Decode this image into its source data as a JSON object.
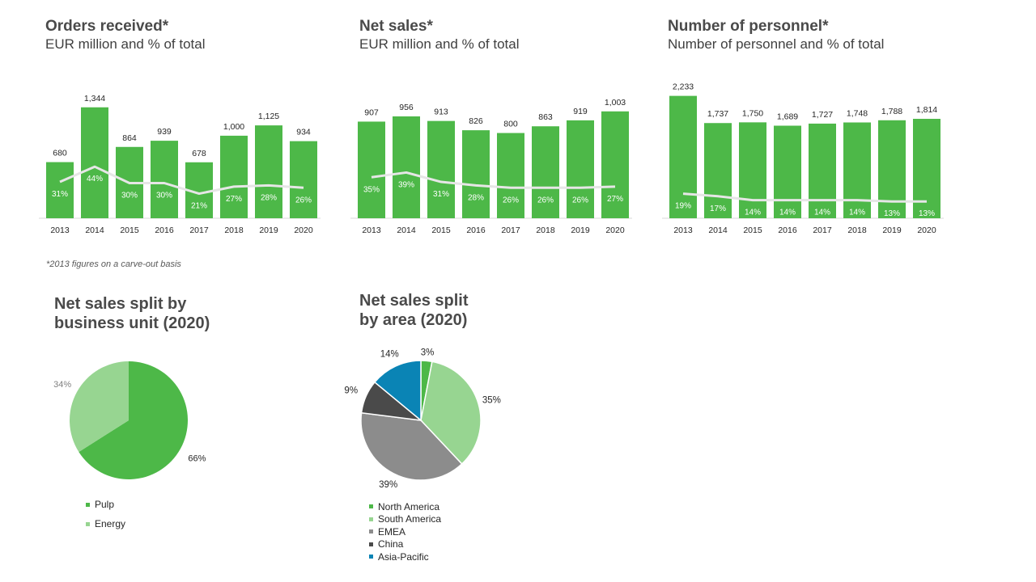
{
  "footnote": "*2013 figures on a carve-out basis",
  "chart_data": [
    {
      "type": "bar",
      "title": "Orders received*",
      "subtitle": "EUR million and % of total",
      "categories": [
        "2013",
        "2014",
        "2015",
        "2016",
        "2017",
        "2018",
        "2019",
        "2020"
      ],
      "series": [
        {
          "values": [
            680,
            1344,
            864,
            939,
            678,
            1000,
            1125,
            934
          ],
          "labels": [
            "680",
            "1,344",
            "864",
            "939",
            "678",
            "1,000",
            "1,125",
            "934"
          ]
        },
        {
          "values": [
            31,
            44,
            30,
            30,
            21,
            27,
            28,
            26
          ],
          "labels": [
            "31%",
            "44%",
            "30%",
            "30%",
            "21%",
            "27%",
            "28%",
            "26%"
          ]
        }
      ],
      "ylim": [
        0,
        1420
      ],
      "pct_lim": [
        0,
        100
      ],
      "colors": {
        "bar": "#4db848",
        "line": "#e6e6e6"
      }
    },
    {
      "type": "bar",
      "title": "Net sales*",
      "subtitle": "EUR million and % of total",
      "categories": [
        "2013",
        "2014",
        "2015",
        "2016",
        "2017",
        "2018",
        "2019",
        "2020"
      ],
      "series": [
        {
          "values": [
            907,
            956,
            913,
            826,
            800,
            863,
            919,
            1003
          ],
          "labels": [
            "907",
            "956",
            "913",
            "826",
            "800",
            "863",
            "919",
            "1,003"
          ]
        },
        {
          "values": [
            35,
            39,
            31,
            28,
            26,
            26,
            26,
            27
          ],
          "labels": [
            "35%",
            "39%",
            "31%",
            "28%",
            "26%",
            "26%",
            "26%",
            "27%"
          ]
        }
      ],
      "ylim": [
        0,
        1100
      ],
      "pct_lim": [
        0,
        100
      ],
      "colors": {
        "bar": "#4db848",
        "line": "#e6e6e6"
      }
    },
    {
      "type": "bar",
      "title": "Number of personnel*",
      "subtitle": "Number of personnel and % of total",
      "categories": [
        "2013",
        "2014",
        "2015",
        "2016",
        "2017",
        "2018",
        "2019",
        "2020"
      ],
      "series": [
        {
          "values": [
            2233,
            1737,
            1750,
            1689,
            1727,
            1748,
            1788,
            1814
          ],
          "labels": [
            "2,233",
            "1,737",
            "1,750",
            "1,689",
            "1,727",
            "1,748",
            "1,788",
            "1,814"
          ]
        },
        {
          "values": [
            19,
            17,
            14,
            14,
            14,
            14,
            13,
            13
          ],
          "labels": [
            "19%",
            "17%",
            "14%",
            "14%",
            "14%",
            "14%",
            "13%",
            "13%"
          ]
        }
      ],
      "ylim": [
        0,
        2360
      ],
      "pct_lim": [
        0,
        100
      ],
      "colors": {
        "bar": "#4db848",
        "line": "#e6e6e6"
      }
    },
    {
      "type": "pie",
      "title": "Net sales split by\nbusiness unit (2020)",
      "slices": [
        {
          "label": "Pulp",
          "value": 66,
          "text": "66%",
          "color": "#4db848"
        },
        {
          "label": "Energy",
          "value": 34,
          "text": "34%",
          "color": "#97d591"
        }
      ]
    },
    {
      "type": "pie",
      "title": "Net sales split\nby area (2020)",
      "slices": [
        {
          "label": "North America",
          "value": 3,
          "text": "3%",
          "color": "#4db848"
        },
        {
          "label": "South America",
          "value": 35,
          "text": "35%",
          "color": "#97d591"
        },
        {
          "label": "EMEA",
          "value": 39,
          "text": "39%",
          "color": "#8c8c8c"
        },
        {
          "label": "China",
          "value": 9,
          "text": "9%",
          "color": "#4a4a4a"
        },
        {
          "label": "Asia-Pacific",
          "value": 14,
          "text": "14%",
          "color": "#0a84b5"
        }
      ]
    }
  ]
}
